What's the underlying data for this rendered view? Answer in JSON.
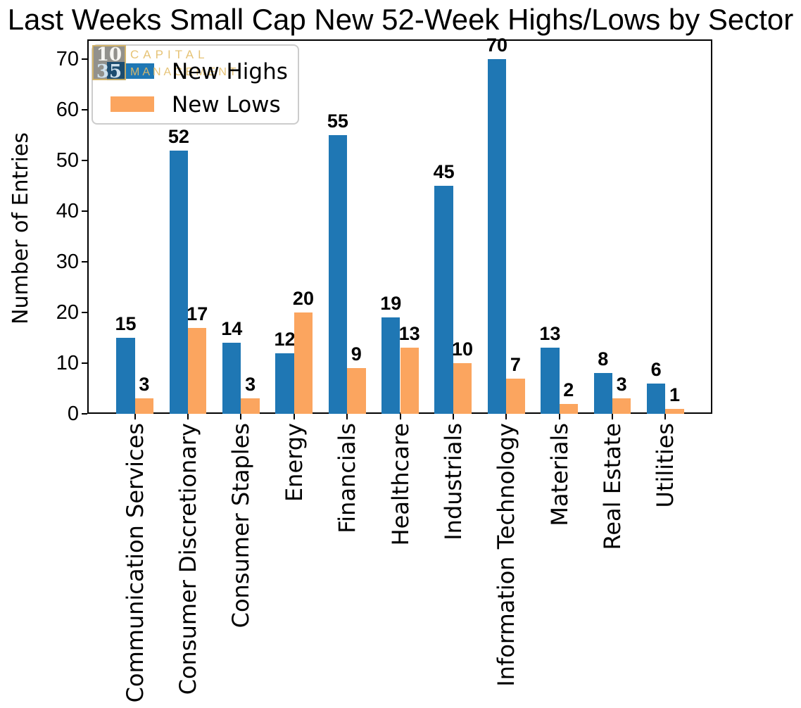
{
  "watermark": {
    "num_top": "10",
    "num_bottom": "35",
    "word1": "CAPITAL",
    "word2": "MANAGEMENT"
  },
  "legend": {
    "items": [
      {
        "label": "New Highs",
        "color": "#1f77b4"
      },
      {
        "label": "New Lows",
        "color": "#fba55f"
      }
    ]
  },
  "chart_data": {
    "type": "bar",
    "title": "Last Weeks Small Cap New 52-Week Highs/Lows by Sector",
    "xlabel": "",
    "ylabel": "Number of Entries",
    "categories": [
      "Communication Services",
      "Consumer Discretionary",
      "Consumer Staples",
      "Energy",
      "Financials",
      "Healthcare",
      "Industrials",
      "Information Technology",
      "Materials",
      "Real Estate",
      "Utilities"
    ],
    "series": [
      {
        "name": "New Highs",
        "color": "#1f77b4",
        "values": [
          15,
          52,
          14,
          12,
          55,
          19,
          45,
          70,
          13,
          8,
          6
        ]
      },
      {
        "name": "New Lows",
        "color": "#fba55f",
        "values": [
          3,
          17,
          3,
          20,
          9,
          13,
          10,
          7,
          2,
          3,
          1
        ]
      }
    ],
    "yticks": [
      0,
      10,
      20,
      30,
      40,
      50,
      60,
      70
    ],
    "ylim": [
      0,
      73.6
    ],
    "grid": false,
    "legend_position": "upper left",
    "bar_value_labels": true
  }
}
